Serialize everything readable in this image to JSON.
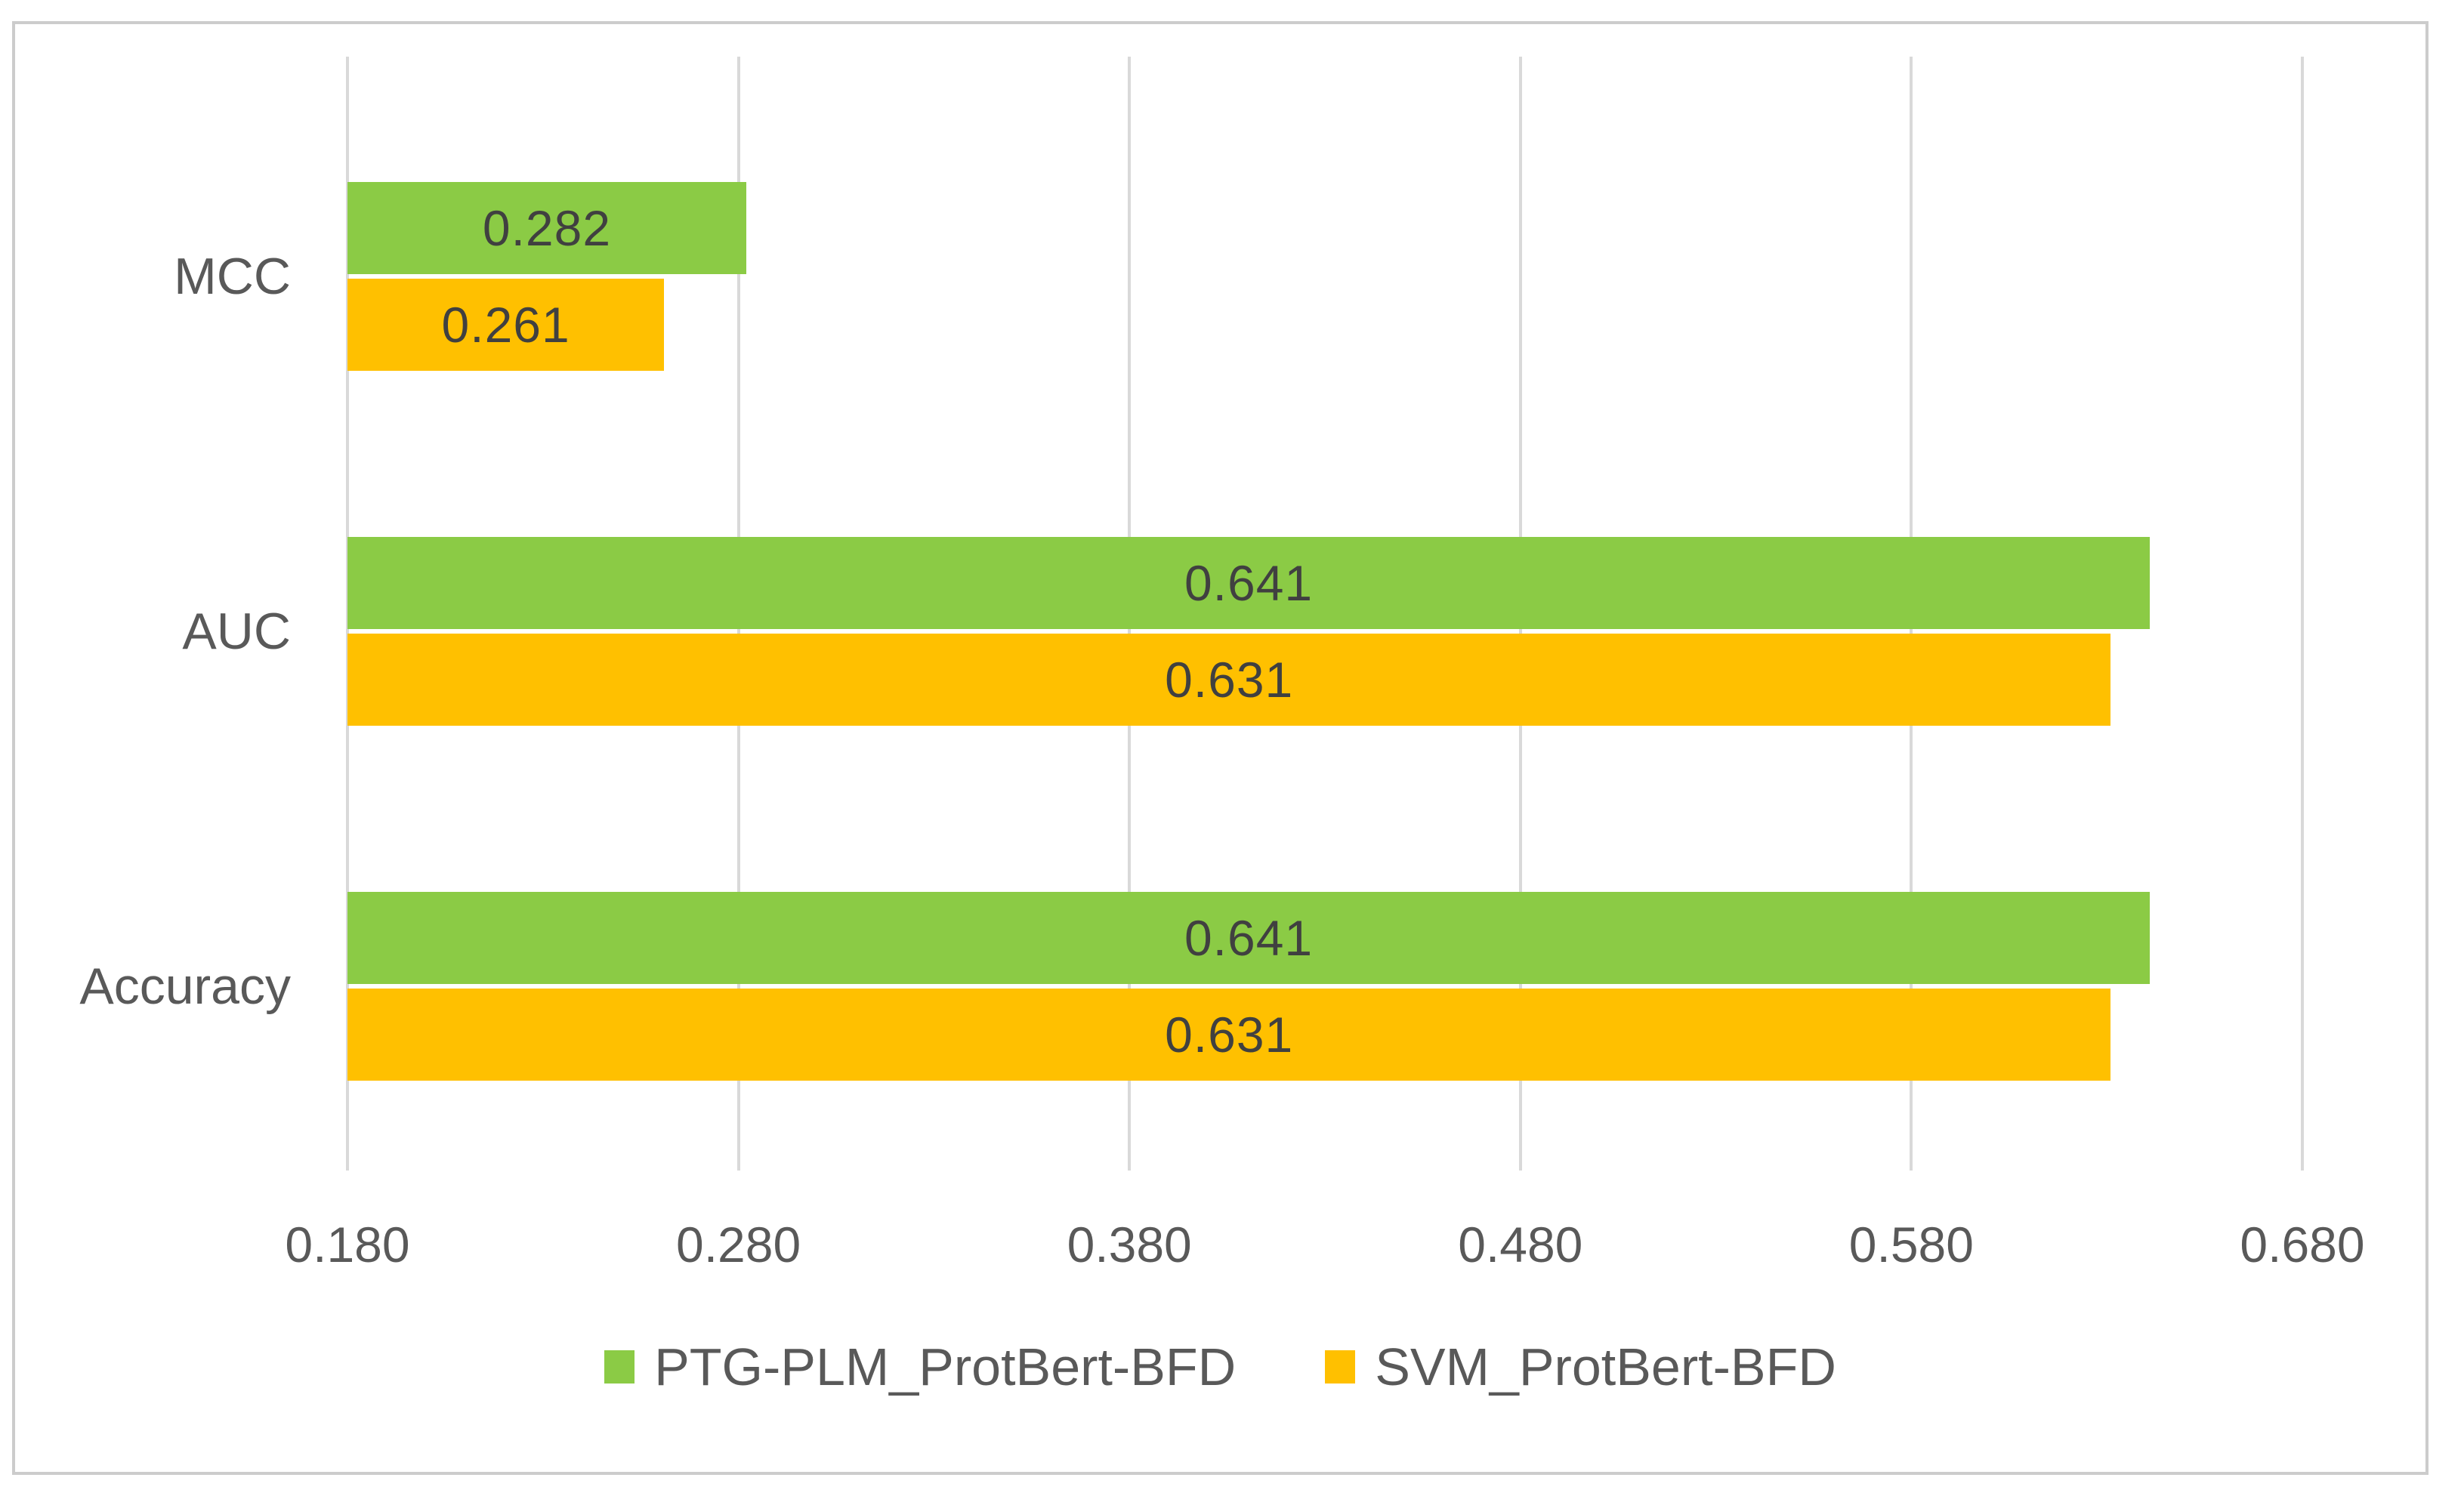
{
  "chart_data": {
    "type": "bar",
    "orientation": "horizontal",
    "title": "",
    "xlabel": "",
    "ylabel": "",
    "categories": [
      "MCC",
      "AUC",
      "Accuracy"
    ],
    "series": [
      {
        "name": "PTG-PLM_ProtBert-BFD",
        "color": "#8bcb45",
        "values": [
          0.282,
          0.641,
          0.641
        ],
        "labels": [
          "0.282",
          "0.641",
          "0.641"
        ]
      },
      {
        "name": "SVM_ProtBert-BFD",
        "color": "#ffc000",
        "values": [
          0.261,
          0.631,
          0.631
        ],
        "labels": [
          "0.261",
          "0.631",
          "0.631"
        ]
      }
    ],
    "x_axis": {
      "min": 0.18,
      "max": 0.68,
      "tick_step": 0.1,
      "tick_labels": [
        "0.180",
        "0.280",
        "0.380",
        "0.480",
        "0.580",
        "0.680"
      ]
    },
    "grid": "vertical",
    "legend_position": "bottom",
    "data_label_position": "center",
    "colors": {
      "gridline": "#d9d9d9",
      "border": "#cccccc",
      "axis_text": "#595959",
      "data_label_text": "#404040"
    }
  }
}
